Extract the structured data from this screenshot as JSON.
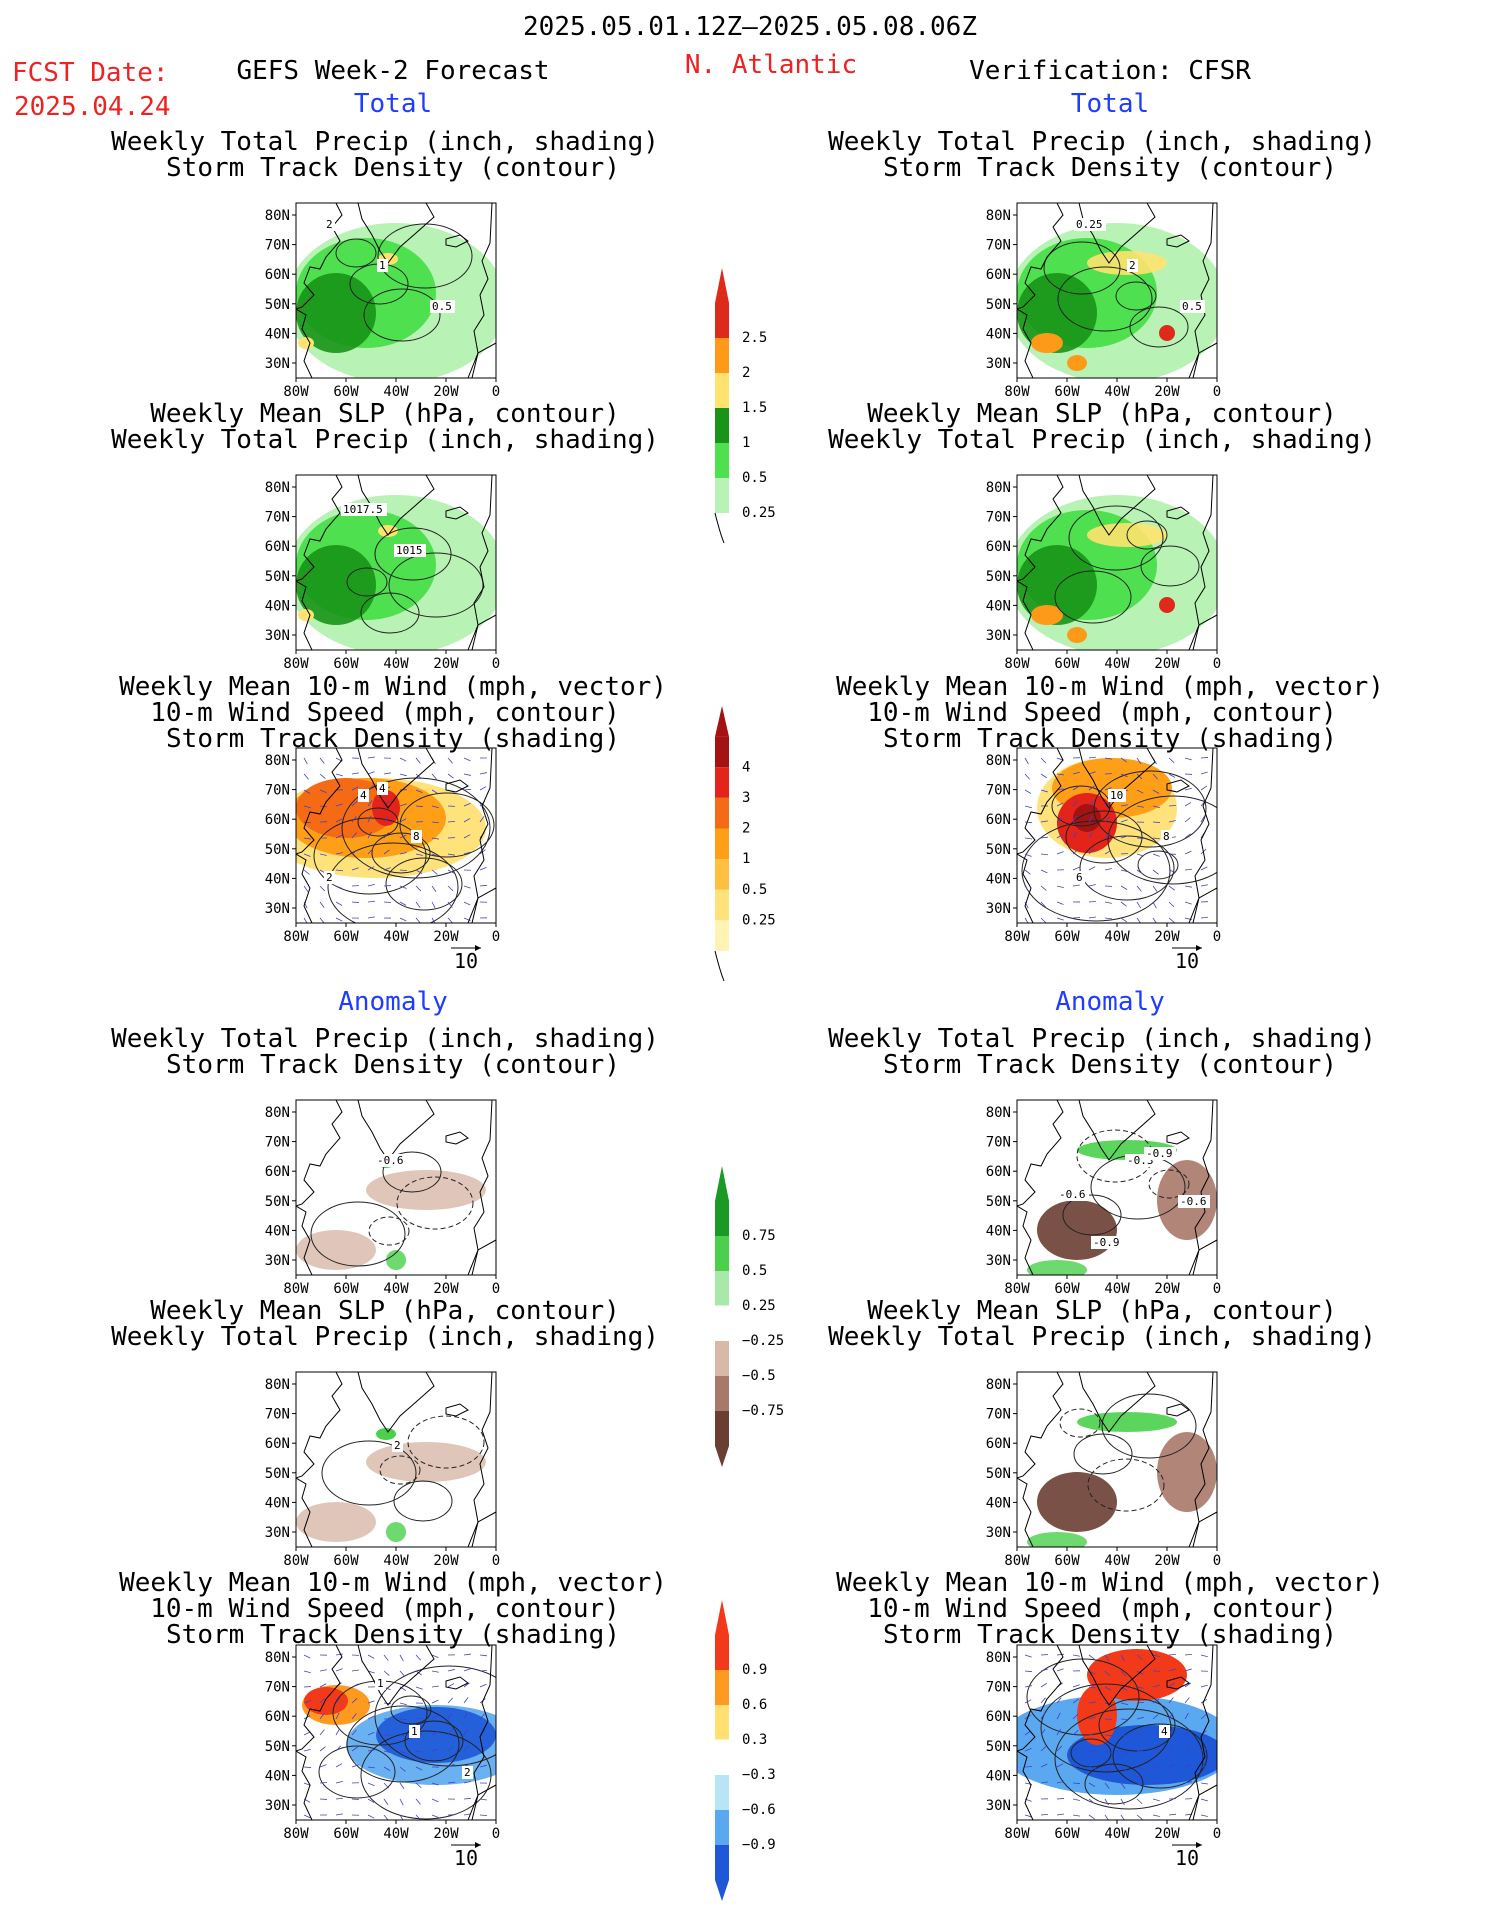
{
  "header": {
    "date_range": "2025.05.01.12Z–2025.05.08.06Z",
    "fcst_label": "FCST Date:",
    "fcst_date": "2025.04.24",
    "left_title": "GEFS Week-2 Forecast",
    "region": "N. Atlantic",
    "right_title": "Verification: CFSR"
  },
  "sections": {
    "total": "Total",
    "anomaly": "Anomaly"
  },
  "titles": {
    "p1": [
      "Weekly Total Precip (inch, shading)",
      "Storm Track Density (contour)"
    ],
    "p2": [
      "Weekly Mean SLP (hPa, contour)",
      "Weekly Total Precip (inch, shading)"
    ],
    "p3": [
      "Weekly Mean 10-m Wind (mph, vector)",
      "10-m Wind Speed (mph, contour)",
      "Storm Track Density (shading)"
    ]
  },
  "axes": {
    "lat": [
      "80N",
      "70N",
      "60N",
      "50N",
      "40N",
      "30N"
    ],
    "lon": [
      "80W",
      "60W",
      "40W",
      "20W",
      "0"
    ],
    "vector_ref": "10"
  },
  "colorbars": {
    "precip_total": {
      "labels": [
        "2.5",
        "2",
        "1.5",
        "1",
        "0.5",
        "0.25"
      ],
      "colors": [
        "#dd2a1a",
        "#ff9a18",
        "#ffe36e",
        "#189418",
        "#4ee04e",
        "#b8f2b4"
      ]
    },
    "storm_total": {
      "labels": [
        "4",
        "3",
        "2",
        "1",
        "0.5",
        "0.25"
      ],
      "colors": [
        "#a31313",
        "#e4241a",
        "#f56a14",
        "#ff9f18",
        "#ffc040",
        "#ffe27a",
        "#fff4b4"
      ]
    },
    "precip_anom": {
      "labels": [
        "0.75",
        "0.5",
        "0.25",
        "−0.25",
        "−0.5",
        "−0.75"
      ],
      "colors": [
        "#1a9a24",
        "#4ad04a",
        "#a8e8a8",
        "#ffffff",
        "#d8b8a8",
        "#a87868",
        "#6a3e32"
      ]
    },
    "storm_anom": {
      "labels": [
        "0.9",
        "0.6",
        "0.3",
        "−0.3",
        "−0.6",
        "−0.9"
      ],
      "colors": [
        "#f23a1a",
        "#ff9a20",
        "#ffe070",
        "#ffffff",
        "#b8e4f8",
        "#5aa8f0",
        "#1e58d8"
      ]
    }
  },
  "contour_labels": {
    "gefs_total_storm": [
      "2",
      "1",
      "0.5"
    ],
    "gefs_total_slp": [
      "1017.5",
      "1015"
    ],
    "gefs_total_wind": [
      "4",
      "8",
      "2",
      "4"
    ],
    "cfsr_total_storm": [
      "0.25",
      "2",
      "0.5"
    ],
    "cfsr_total_wind": [
      "10",
      "8",
      "6"
    ],
    "gefs_anom_storm": [
      "-0.6"
    ],
    "gefs_anom_slp": [
      "2"
    ],
    "gefs_anom_wind": [
      "1",
      "2",
      "1"
    ],
    "cfsr_anom_storm": [
      "-0.3",
      "-0.6",
      "-0.9",
      "-0.9",
      "-0.6"
    ],
    "cfsr_anom_wind": [
      "4"
    ]
  },
  "palette": {
    "land_line": "#000000",
    "contour": "#222222",
    "vector": "#4040c8"
  }
}
